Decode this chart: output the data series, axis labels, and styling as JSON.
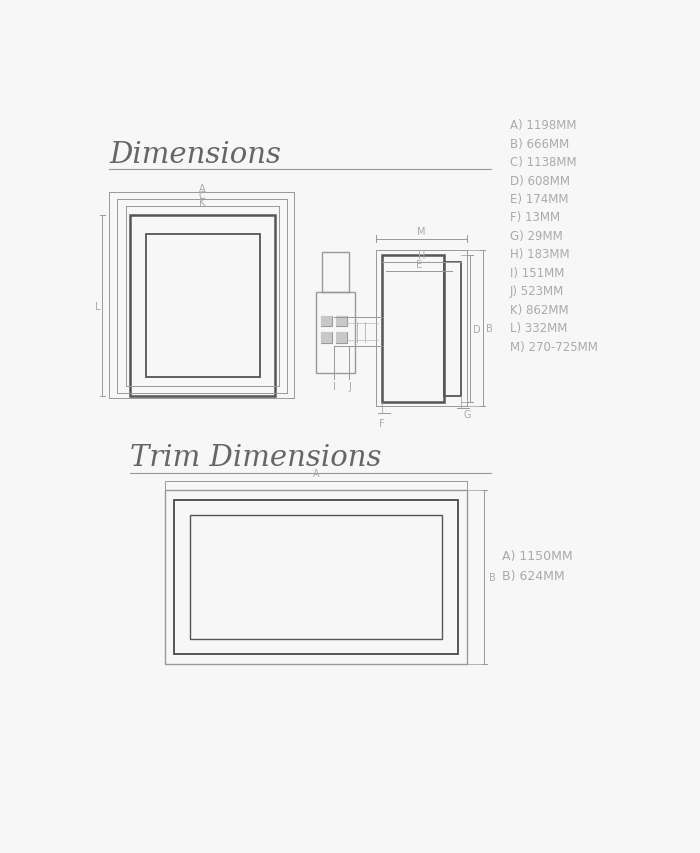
{
  "bg_color": "#f7f7f7",
  "line_color": "#999999",
  "dark_line_color": "#555555",
  "title_color": "#666666",
  "dim_label_color": "#aaaaaa",
  "title1": "Dimensions",
  "title2": "Trim Dimensions",
  "dim_labels": [
    "A) 1198MM",
    "B) 666MM",
    "C) 1138MM",
    "D) 608MM",
    "E) 174MM",
    "F) 13MM",
    "G) 29MM",
    "H) 183MM",
    "I) 151MM",
    "J) 523MM",
    "K) 862MM",
    "L) 332MM",
    "M) 270-725MM"
  ],
  "trim_dim_labels": [
    "A) 1150MM",
    "B) 624MM"
  ]
}
